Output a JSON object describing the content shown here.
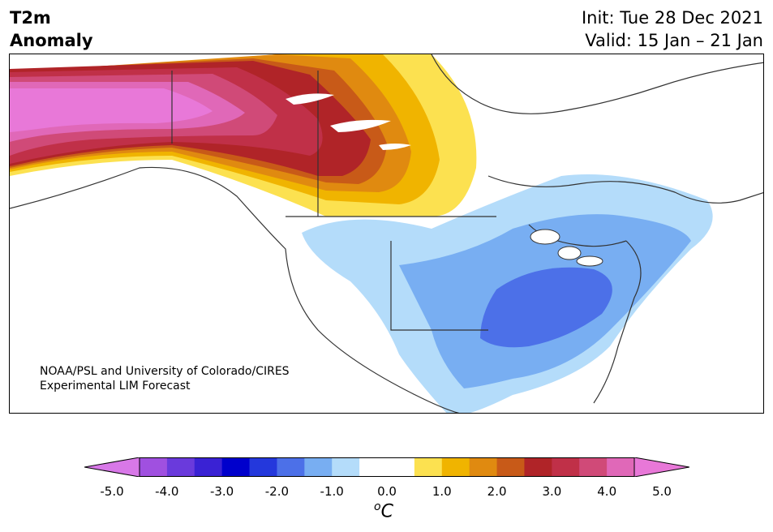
{
  "header": {
    "title_line1": "T2m",
    "title_line2": "Anomaly",
    "init": "Init: Tue 28 Dec 2021",
    "valid": "Valid: 15 Jan – 21 Jan"
  },
  "credit": {
    "line1": "NOAA/PSL and University of Colorado/CIRES",
    "line2": "Experimental LIM Forecast"
  },
  "colorbar": {
    "ticks": [
      "-5.0",
      "-4.0",
      "-3.0",
      "-2.0",
      "-1.0",
      "0.0",
      "1.0",
      "2.0",
      "3.0",
      "4.0",
      "5.0"
    ],
    "unit_base": "o",
    "unit_letter": "C",
    "colors": [
      "#d878e8",
      "#a050e0",
      "#6a3adc",
      "#3a22d4",
      "#0000cc",
      "#2438dc",
      "#4c70e8",
      "#78aef2",
      "#b4dcfa",
      "#ffffff",
      "#ffffff",
      "#fce150",
      "#f0b400",
      "#e08a10",
      "#c85a18",
      "#b02428",
      "#c03048",
      "#d04a78",
      "#e068b8",
      "#e878d8"
    ]
  },
  "map_colors": {
    "warm_light": "#fce150",
    "warm_mid": "#f0b400",
    "warm_orange": "#e08a10",
    "warm_deep": "#c85a18",
    "warm_red": "#b02428",
    "warm_crimson": "#c03048",
    "warm_rose": "#d04a78",
    "warm_pink": "#e068b8",
    "warm_magenta": "#e878d8",
    "cool_light": "#b4dcfa",
    "cool_mid": "#78aef2",
    "cool_deep": "#4c70e8",
    "coastline": "#333333"
  }
}
